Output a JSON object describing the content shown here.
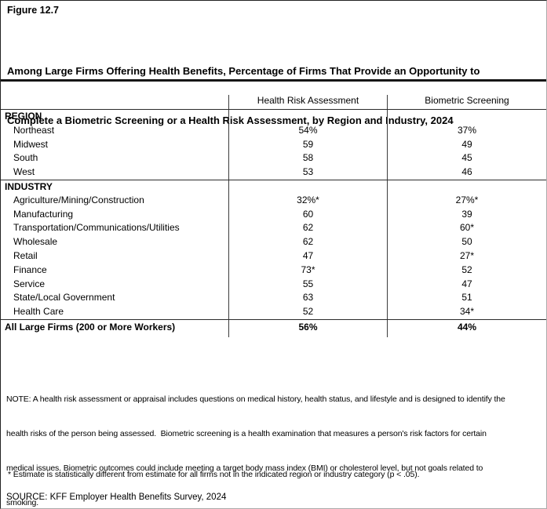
{
  "figure_label": "Figure 12.7",
  "title_line1": "Among Large Firms Offering Health Benefits, Percentage of Firms That Provide an Opportunity to",
  "title_line2": "Complete a Biometric Screening or a Health Risk Assessment, by Region and Industry, 2024",
  "chart_data": {
    "type": "table",
    "title": "Among Large Firms Offering Health Benefits, Percentage of Firms That Provide an Opportunity to Complete a Biometric Screening or a Health Risk Assessment, by Region and Industry, 2024",
    "columns": [
      "Health Risk Assessment",
      "Biometric Screening"
    ],
    "sections": [
      {
        "header": "REGION",
        "rows": [
          {
            "label": "Northeast",
            "hra": "54%",
            "bs": "37%"
          },
          {
            "label": "Midwest",
            "hra": "59",
            "bs": "49"
          },
          {
            "label": "South",
            "hra": "58",
            "bs": "45"
          },
          {
            "label": "West",
            "hra": "53",
            "bs": "46"
          }
        ]
      },
      {
        "header": "INDUSTRY",
        "rows": [
          {
            "label": "Agriculture/Mining/Construction",
            "hra": "32%*",
            "bs": "27%*"
          },
          {
            "label": "Manufacturing",
            "hra": "60",
            "bs": "39"
          },
          {
            "label": "Transportation/Communications/Utilities",
            "hra": "62",
            "bs": "60*"
          },
          {
            "label": "Wholesale",
            "hra": "62",
            "bs": "50"
          },
          {
            "label": "Retail",
            "hra": "47",
            "bs": "27*"
          },
          {
            "label": "Finance",
            "hra": "73*",
            "bs": "52"
          },
          {
            "label": "Service",
            "hra": "55",
            "bs": "47"
          },
          {
            "label": "State/Local Government",
            "hra": "63",
            "bs": "51"
          },
          {
            "label": "Health Care",
            "hra": "52",
            "bs": "34*"
          }
        ]
      }
    ],
    "total": {
      "label": "All Large Firms (200 or More Workers)",
      "hra": "56%",
      "bs": "44%"
    },
    "text_color": "#000000",
    "line_color": "#2b2b2b"
  },
  "note_lines": [
    "NOTE: A health risk assessment or appraisal includes questions on medical history, health status, and lifestyle and is designed to identify the",
    "health risks of the person being assessed.  Biometric screening is a health examination that measures a person's risk factors for certain",
    "medical issues. Biometric outcomes could include meeting a target body mass index (BMI) or cholesterol level, but not goals related to",
    "smoking."
  ],
  "footnote": "* Estimate is statistically different from estimate for all firms not in the indicated region or industry category (p < .05).",
  "source": "SOURCE: KFF Employer Health Benefits Survey, 2024"
}
